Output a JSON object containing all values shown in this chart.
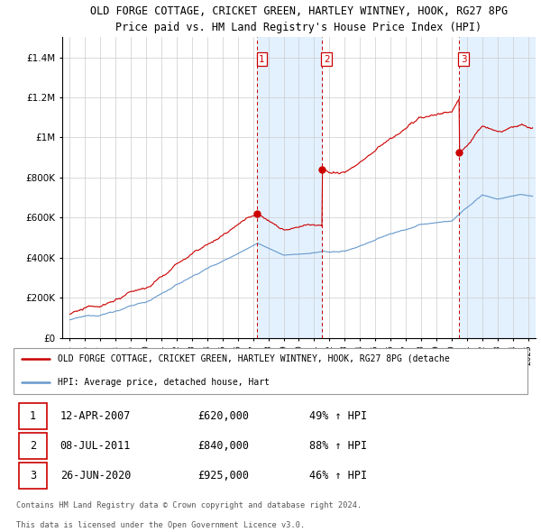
{
  "title1": "OLD FORGE COTTAGE, CRICKET GREEN, HARTLEY WINTNEY, HOOK, RG27 8PG",
  "title2": "Price paid vs. HM Land Registry's House Price Index (HPI)",
  "legend_red": "OLD FORGE COTTAGE, CRICKET GREEN, HARTLEY WINTNEY, HOOK, RG27 8PG (detache",
  "legend_blue": "HPI: Average price, detached house, Hart",
  "footnote1": "Contains HM Land Registry data © Crown copyright and database right 2024.",
  "footnote2": "This data is licensed under the Open Government Licence v3.0.",
  "transactions": [
    {
      "num": 1,
      "date": "12-APR-2007",
      "price": "£620,000",
      "pct": "49% ↑ HPI"
    },
    {
      "num": 2,
      "date": "08-JUL-2011",
      "price": "£840,000",
      "pct": "88% ↑ HPI"
    },
    {
      "num": 3,
      "date": "26-JUN-2020",
      "price": "£925,000",
      "pct": "46% ↑ HPI"
    }
  ],
  "sale_dates_decimal": [
    2007.28,
    2011.51,
    2020.49
  ],
  "sale_prices": [
    620000,
    840000,
    925000
  ],
  "red_color": "#cc0000",
  "blue_color": "#6699cc",
  "shading_color": "#ddeeff",
  "grid_color": "#cccccc",
  "ylim": [
    0,
    1500000
  ],
  "yticks": [
    0,
    200000,
    400000,
    600000,
    800000,
    1000000,
    1200000,
    1400000
  ],
  "ytick_labels": [
    "£0",
    "£200K",
    "£400K",
    "£600K",
    "£800K",
    "£1M",
    "£1.2M",
    "£1.4M"
  ],
  "xmin": 1994.5,
  "xmax": 2025.5
}
